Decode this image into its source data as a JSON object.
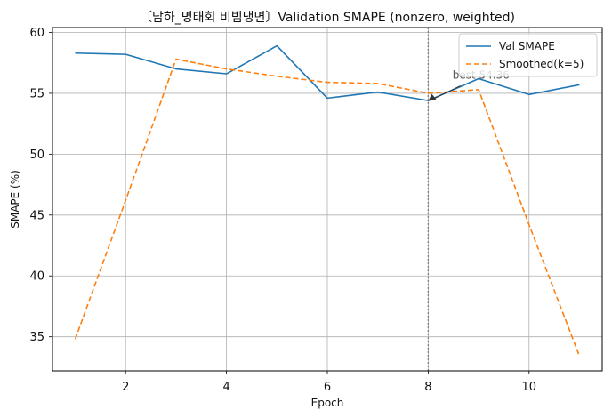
{
  "chart_data": {
    "type": "line",
    "title": "〔담하_명태회 비빔냉면〕Validation SMAPE (nonzero, weighted)",
    "xlabel": "Epoch",
    "ylabel": "SMAPE (%)",
    "x": [
      1,
      2,
      3,
      4,
      5,
      6,
      7,
      8,
      9,
      10,
      11
    ],
    "xlim": [
      0.55,
      11.45
    ],
    "ylim": [
      32.2,
      60.4
    ],
    "xticks": [
      2,
      4,
      6,
      8,
      10
    ],
    "yticks": [
      35,
      40,
      45,
      50,
      55,
      60
    ],
    "grid": true,
    "legend_position": "top-right",
    "series": [
      {
        "name": "Val SMAPE",
        "color": "#1f77b4",
        "style": "solid",
        "values": [
          58.3,
          58.2,
          57.0,
          56.6,
          58.9,
          54.6,
          55.1,
          54.4,
          56.2,
          54.9,
          55.7
        ]
      },
      {
        "name": "Smoothed(k=5)",
        "color": "#ff7f0e",
        "style": "dashed",
        "values": [
          34.8,
          46.2,
          57.8,
          57.0,
          56.4,
          55.9,
          55.8,
          55.0,
          55.3,
          44.2,
          33.4
        ]
      }
    ],
    "best_line": {
      "x": 8,
      "color": "#808080"
    },
    "annotation": {
      "text": "best 54.36",
      "x": 8,
      "y": 54.36,
      "text_x": 8.5,
      "text_y": 56.2
    }
  }
}
